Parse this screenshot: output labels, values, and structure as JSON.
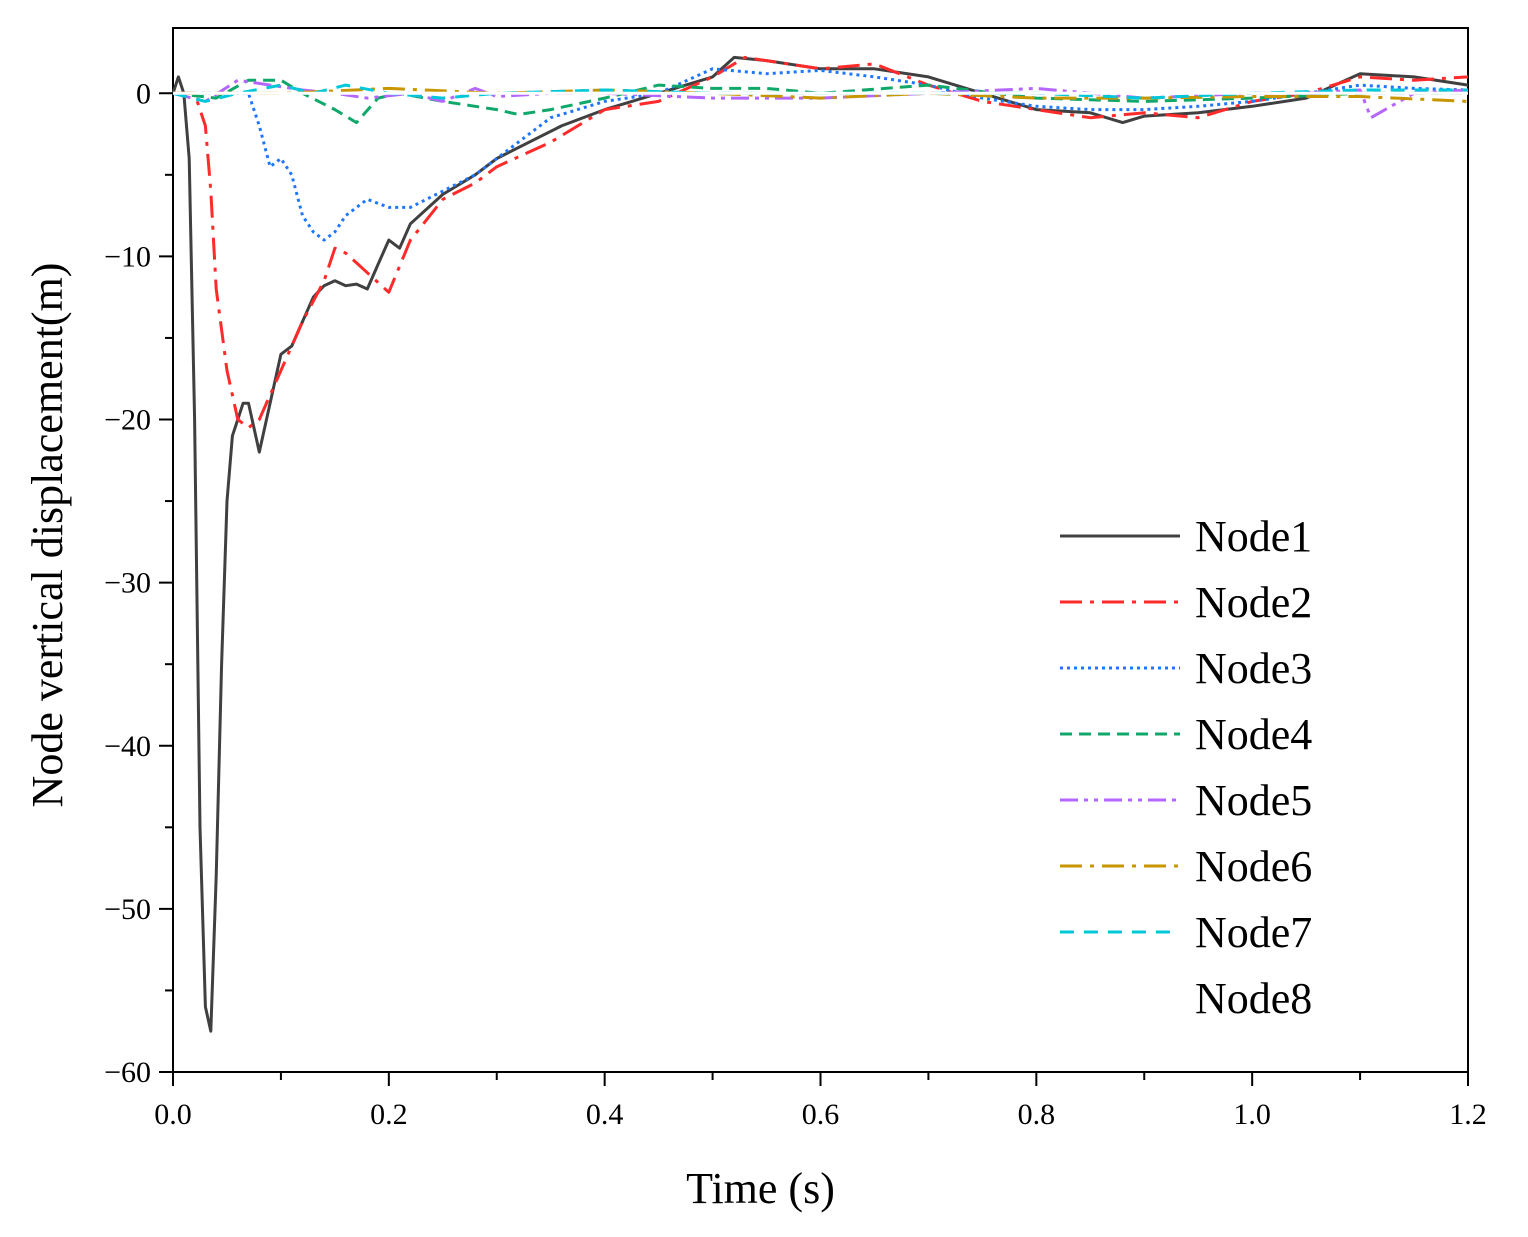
{
  "chart_data": {
    "type": "line",
    "title": "",
    "xlabel": "Time (s)",
    "ylabel": "Node vertical displacement(m)",
    "xlim": [
      0.0,
      1.2
    ],
    "ylim": [
      -60,
      4
    ],
    "xticks": [
      0.0,
      0.2,
      0.4,
      0.6,
      0.8,
      1.0,
      1.2
    ],
    "xtick_labels": [
      "0.0",
      "0.2",
      "0.4",
      "0.6",
      "0.8",
      "1.0",
      "1.2"
    ],
    "yticks": [
      0,
      -10,
      -20,
      -30,
      -40,
      -50,
      -60
    ],
    "ytick_labels": [
      "0",
      "−10",
      "−20",
      "−30",
      "−40",
      "−50",
      "−60"
    ],
    "grid": false,
    "legend_position": "bottom-right",
    "series": [
      {
        "name": "Node1",
        "color": "#404040",
        "dash": "solid",
        "x": [
          0.0,
          0.005,
          0.01,
          0.015,
          0.02,
          0.025,
          0.03,
          0.035,
          0.04,
          0.045,
          0.05,
          0.055,
          0.06,
          0.065,
          0.07,
          0.08,
          0.09,
          0.1,
          0.11,
          0.12,
          0.13,
          0.14,
          0.15,
          0.16,
          0.17,
          0.18,
          0.19,
          0.2,
          0.21,
          0.22,
          0.25,
          0.28,
          0.3,
          0.33,
          0.36,
          0.4,
          0.45,
          0.5,
          0.52,
          0.55,
          0.6,
          0.65,
          0.7,
          0.75,
          0.8,
          0.85,
          0.88,
          0.9,
          0.95,
          1.0,
          1.05,
          1.1,
          1.15,
          1.2
        ],
        "y": [
          0,
          1,
          0,
          -4,
          -20,
          -45,
          -56,
          -57.5,
          -48,
          -35,
          -25,
          -21,
          -20,
          -19,
          -19,
          -22,
          -19,
          -16,
          -15.5,
          -14,
          -12.5,
          -11.8,
          -11.5,
          -11.8,
          -11.7,
          -12,
          -10.5,
          -9,
          -9.5,
          -8,
          -6.2,
          -5,
          -4,
          -3,
          -2,
          -1,
          0,
          1,
          2.2,
          2,
          1.5,
          1.5,
          1,
          0,
          -1,
          -1.2,
          -1.8,
          -1.4,
          -1.2,
          -0.8,
          -0.3,
          1.2,
          1,
          0.5
        ]
      },
      {
        "name": "Node2",
        "color": "#ff2a2a",
        "dash": "dash-dot",
        "x": [
          0.0,
          0.02,
          0.03,
          0.035,
          0.04,
          0.05,
          0.06,
          0.07,
          0.08,
          0.1,
          0.12,
          0.14,
          0.15,
          0.16,
          0.18,
          0.2,
          0.22,
          0.25,
          0.28,
          0.3,
          0.35,
          0.4,
          0.45,
          0.5,
          0.53,
          0.6,
          0.65,
          0.7,
          0.75,
          0.8,
          0.85,
          0.9,
          0.95,
          1.0,
          1.05,
          1.1,
          1.15,
          1.2
        ],
        "y": [
          0,
          0,
          -2,
          -6,
          -12,
          -17,
          -20,
          -20.5,
          -20,
          -17,
          -14,
          -11.5,
          -9.5,
          -9.8,
          -11,
          -12.2,
          -9,
          -6.5,
          -5.5,
          -4.5,
          -3,
          -1,
          -0.5,
          1,
          2.2,
          1.5,
          1.8,
          0.5,
          -0.5,
          -1,
          -1.5,
          -1.2,
          -1.5,
          -0.5,
          0,
          1,
          0.8,
          1
        ]
      },
      {
        "name": "Node3",
        "color": "#1f77ff",
        "dash": "dotted",
        "x": [
          0.0,
          0.04,
          0.07,
          0.08,
          0.09,
          0.1,
          0.11,
          0.12,
          0.13,
          0.14,
          0.15,
          0.16,
          0.18,
          0.2,
          0.22,
          0.25,
          0.28,
          0.3,
          0.35,
          0.4,
          0.45,
          0.5,
          0.55,
          0.6,
          0.65,
          0.7,
          0.75,
          0.8,
          0.85,
          0.9,
          0.95,
          1.0,
          1.05,
          1.1,
          1.15,
          1.2
        ],
        "y": [
          0,
          0,
          0,
          -2,
          -4.5,
          -4,
          -5,
          -7.5,
          -8.5,
          -9,
          -8.5,
          -7.5,
          -6.5,
          -7,
          -7,
          -6,
          -5,
          -4,
          -1.5,
          -0.5,
          0,
          1.5,
          1.2,
          1.4,
          1,
          0.5,
          -0.3,
          -0.8,
          -1,
          -1,
          -0.8,
          -0.5,
          0,
          0.5,
          0.3,
          0.2
        ]
      },
      {
        "name": "Node4",
        "color": "#10a86a",
        "dash": "dashed",
        "x": [
          0.0,
          0.04,
          0.07,
          0.1,
          0.12,
          0.15,
          0.17,
          0.19,
          0.21,
          0.25,
          0.3,
          0.32,
          0.35,
          0.4,
          0.45,
          0.5,
          0.55,
          0.6,
          0.7,
          0.8,
          0.9,
          1.0,
          1.1,
          1.2
        ],
        "y": [
          0,
          -0.3,
          0.8,
          0.8,
          0,
          -1,
          -1.8,
          -0.3,
          0,
          -0.5,
          -1,
          -1.3,
          -1,
          -0.3,
          0.5,
          0.3,
          0.3,
          0,
          0.5,
          -0.3,
          -0.5,
          -0.3,
          0,
          0
        ]
      },
      {
        "name": "Node5",
        "color": "#b566ff",
        "dash": "dash-dot-dot",
        "x": [
          0.0,
          0.03,
          0.06,
          0.09,
          0.12,
          0.15,
          0.18,
          0.22,
          0.25,
          0.28,
          0.3,
          0.35,
          0.4,
          0.5,
          0.6,
          0.7,
          0.8,
          0.9,
          1.0,
          1.05,
          1.1,
          1.11,
          1.15,
          1.2
        ],
        "y": [
          0,
          -0.5,
          0.8,
          0.5,
          0.2,
          0,
          -0.3,
          0,
          -0.5,
          0.3,
          -0.2,
          0,
          0,
          -0.3,
          -0.3,
          0,
          0.3,
          -0.3,
          0,
          0,
          0.2,
          -1.5,
          0,
          0.2
        ]
      },
      {
        "name": "Node6",
        "color": "#c89600",
        "dash": "dash-dot",
        "x": [
          0.0,
          0.1,
          0.2,
          0.3,
          0.4,
          0.5,
          0.6,
          0.7,
          0.8,
          0.9,
          1.0,
          1.1,
          1.2
        ],
        "y": [
          0,
          0,
          0.3,
          0,
          0.2,
          0,
          -0.3,
          0,
          -0.3,
          -0.3,
          -0.2,
          -0.2,
          -0.5
        ]
      },
      {
        "name": "Node7",
        "color": "#00c8d8",
        "dash": "dash-wide",
        "x": [
          0.0,
          0.03,
          0.06,
          0.1,
          0.13,
          0.16,
          0.2,
          0.25,
          0.3,
          0.4,
          0.5,
          0.6,
          0.7,
          0.8,
          0.9,
          1.0,
          1.1,
          1.2
        ],
        "y": [
          0,
          -0.5,
          0,
          0.5,
          0,
          0.5,
          0,
          -0.3,
          0,
          0.2,
          0,
          0,
          0,
          0,
          -0.3,
          0,
          0.2,
          0.2
        ]
      },
      {
        "name": "Node8",
        "color": "#ffffff",
        "dash": "solid",
        "x": [
          0.0,
          1.2
        ],
        "y": [
          0,
          0
        ]
      }
    ]
  }
}
